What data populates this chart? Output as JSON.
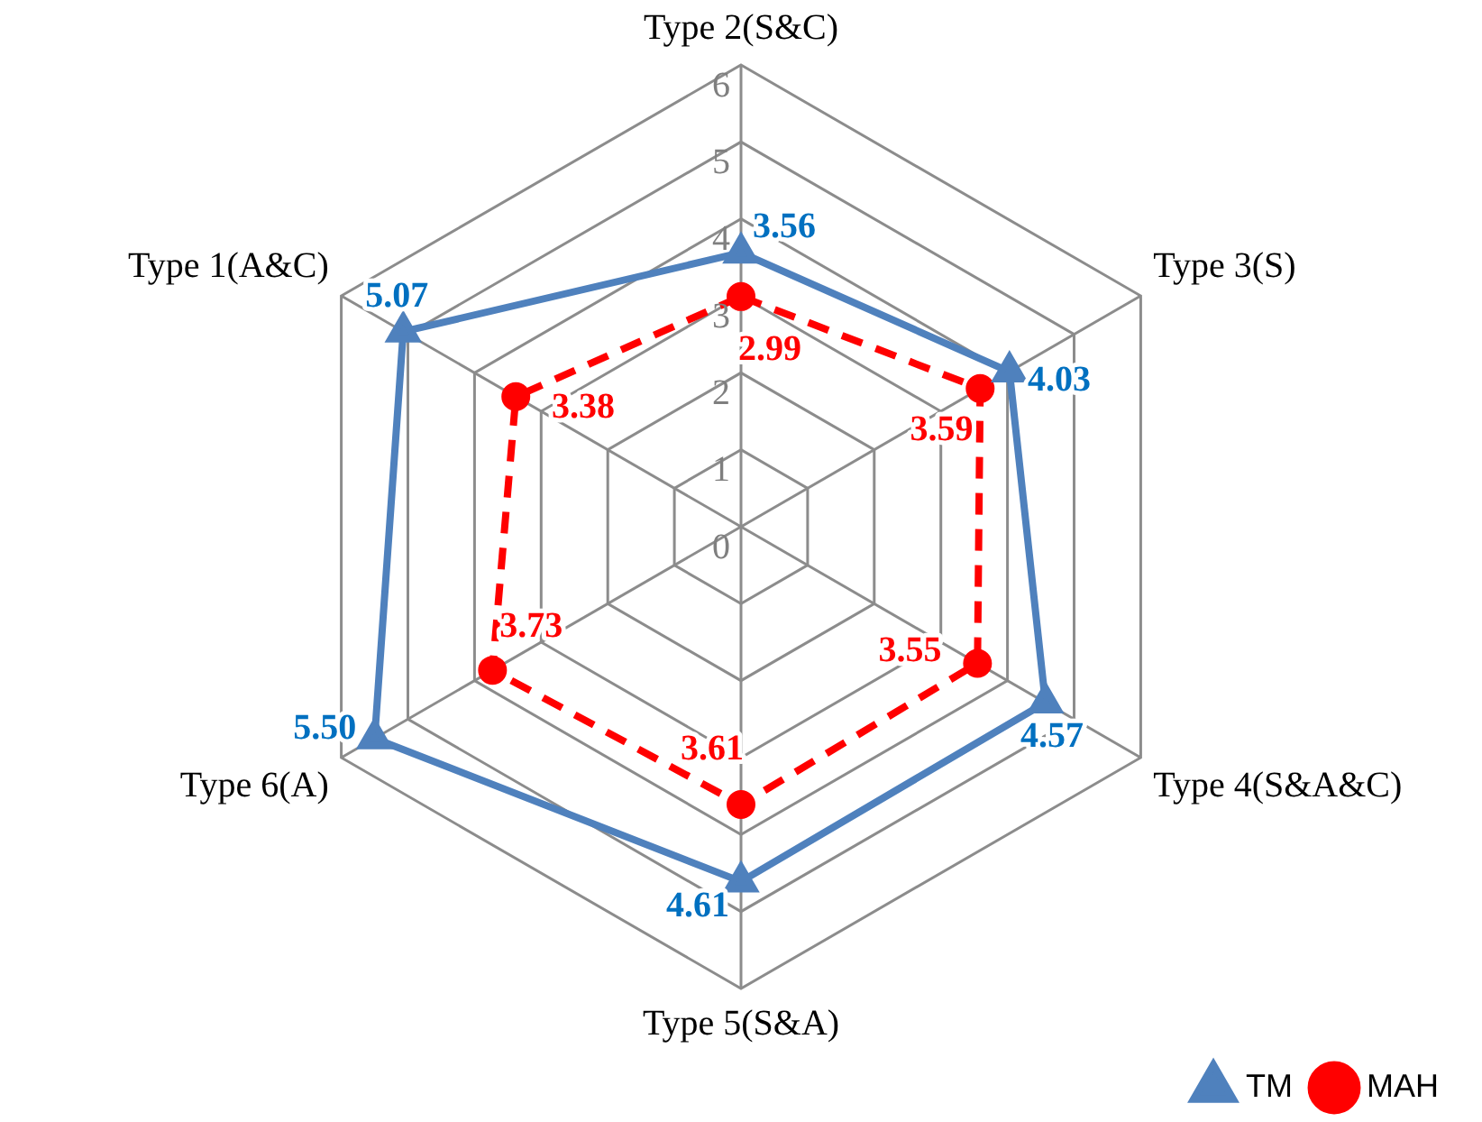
{
  "chart_data": {
    "type": "radar",
    "categories": [
      "Type 2(S&C)",
      "Type 3(S)",
      "Type 4(S&A&C)",
      "Type 5(S&A)",
      "Type 6(A)",
      "Type 1(A&C)"
    ],
    "series": [
      {
        "name": "TM",
        "color": "#4f81bd",
        "marker": "triangle",
        "line_style": "solid",
        "values": [
          3.56,
          4.03,
          4.57,
          4.61,
          5.5,
          5.07
        ],
        "value_labels": [
          "3.56",
          "4.03",
          "4.57",
          "4.61",
          "5.50",
          "5.07"
        ]
      },
      {
        "name": "MAH",
        "color": "#ff0000",
        "marker": "circle",
        "line_style": "dashed",
        "values": [
          2.99,
          3.59,
          3.55,
          3.61,
          3.73,
          3.38
        ],
        "value_labels": [
          "2.99",
          "3.59",
          "3.55",
          "3.61",
          "3.73",
          "3.38"
        ]
      }
    ],
    "ylim": [
      0,
      6
    ],
    "yticks": [
      0,
      1,
      2,
      3,
      4,
      5,
      6
    ],
    "grid": true,
    "legend": "bottom right"
  }
}
